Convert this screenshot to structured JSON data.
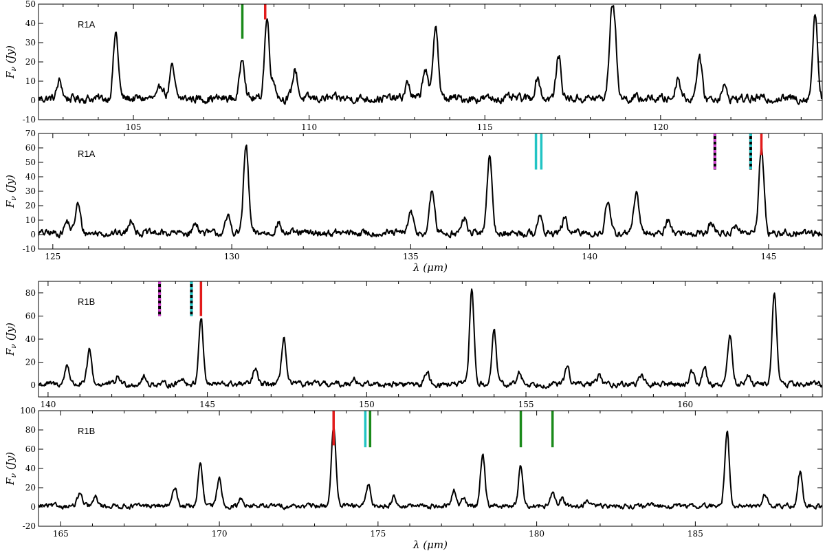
{
  "chart_data": [
    {
      "type": "line",
      "panel_label": "R1A",
      "xlim": [
        102.3,
        124.6
      ],
      "ylim": [
        -10,
        50
      ],
      "xticks": [
        105,
        110,
        115,
        120
      ],
      "yticks": [
        -10,
        0,
        10,
        20,
        30,
        40,
        50
      ],
      "xlabel": "",
      "ylabel": "F_ν (Jy)",
      "show_xlabel": false,
      "baseline": 1,
      "noise": 1.8,
      "peaks": [
        [
          102.9,
          9
        ],
        [
          104.5,
          34
        ],
        [
          105.8,
          7
        ],
        [
          106.1,
          16
        ],
        [
          108.1,
          22
        ],
        [
          108.8,
          41
        ],
        [
          109.0,
          8
        ],
        [
          109.6,
          15
        ],
        [
          112.8,
          8
        ],
        [
          113.3,
          16
        ],
        [
          113.6,
          39
        ],
        [
          116.5,
          11
        ],
        [
          117.1,
          22
        ],
        [
          118.6,
          37
        ],
        [
          118.7,
          26
        ],
        [
          120.5,
          11
        ],
        [
          121.1,
          22
        ],
        [
          121.8,
          6
        ],
        [
          124.4,
          44
        ]
      ],
      "markers": [
        {
          "x": 108.1,
          "y0": 32,
          "y1": 50,
          "color": "#1a8a1a"
        },
        {
          "x": 108.75,
          "y0": 42,
          "y1": 50,
          "color": "#e21b1b"
        }
      ]
    },
    {
      "type": "line",
      "panel_label": "R1A",
      "xlim": [
        124.6,
        146.5
      ],
      "ylim": [
        -10,
        70
      ],
      "xticks": [
        125,
        130,
        135,
        140,
        145
      ],
      "yticks": [
        -10,
        0,
        10,
        20,
        30,
        40,
        50,
        60,
        70
      ],
      "xlabel": "λ (μm)",
      "ylabel": "F_ν (Jy)",
      "show_xlabel": true,
      "baseline": 1,
      "noise": 2.0,
      "peaks": [
        [
          125.4,
          8
        ],
        [
          125.7,
          20
        ],
        [
          127.2,
          10
        ],
        [
          129.0,
          7
        ],
        [
          129.9,
          11
        ],
        [
          130.4,
          60
        ],
        [
          131.3,
          7
        ],
        [
          135.0,
          14
        ],
        [
          135.6,
          29
        ],
        [
          136.5,
          10
        ],
        [
          137.2,
          53
        ],
        [
          138.6,
          11
        ],
        [
          139.3,
          10
        ],
        [
          140.5,
          21
        ],
        [
          141.3,
          28
        ],
        [
          142.2,
          9
        ],
        [
          143.4,
          7
        ],
        [
          144.1,
          6
        ],
        [
          144.8,
          59
        ]
      ],
      "markers": [
        {
          "x": 138.5,
          "y0": 45,
          "y1": 70,
          "color": "#22c4c4"
        },
        {
          "x": 138.65,
          "y0": 45,
          "y1": 70,
          "color": "#22c4c4"
        },
        {
          "x": 143.5,
          "y0": 45,
          "y1": 70,
          "color": "#d040d0",
          "dashed": true
        },
        {
          "x": 144.5,
          "y0": 45,
          "y1": 70,
          "color": "#22c4c4",
          "dashed": true
        },
        {
          "x": 144.8,
          "y0": 55,
          "y1": 70,
          "color": "#e21b1b"
        }
      ]
    },
    {
      "type": "line",
      "panel_label": "R1B",
      "xlim": [
        139.7,
        164.3
      ],
      "ylim": [
        -10,
        90
      ],
      "xticks": [
        140,
        145,
        150,
        155,
        160
      ],
      "yticks": [
        0,
        20,
        40,
        60,
        80
      ],
      "xlabel": "",
      "ylabel": "F_ν (Jy)",
      "show_xlabel": false,
      "baseline": 1,
      "noise": 2.0,
      "peaks": [
        [
          140.6,
          17
        ],
        [
          141.3,
          29
        ],
        [
          142.2,
          6
        ],
        [
          143.0,
          6
        ],
        [
          144.2,
          6
        ],
        [
          144.8,
          58
        ],
        [
          146.5,
          13
        ],
        [
          147.4,
          41
        ],
        [
          149.6,
          6
        ],
        [
          151.9,
          11
        ],
        [
          153.3,
          82
        ],
        [
          154.0,
          45
        ],
        [
          154.8,
          10
        ],
        [
          156.3,
          16
        ],
        [
          157.3,
          8
        ],
        [
          158.6,
          8
        ],
        [
          160.2,
          12
        ],
        [
          160.6,
          15
        ],
        [
          161.4,
          44
        ],
        [
          162.0,
          8
        ],
        [
          162.8,
          80
        ]
      ],
      "markers": [
        {
          "x": 143.5,
          "y0": 60,
          "y1": 90,
          "color": "#d040d0",
          "dashed": true
        },
        {
          "x": 144.5,
          "y0": 60,
          "y1": 90,
          "color": "#22c4c4",
          "dashed": true
        },
        {
          "x": 144.8,
          "y0": 60,
          "y1": 90,
          "color": "#e21b1b"
        }
      ]
    },
    {
      "type": "line",
      "panel_label": "R1B",
      "xlim": [
        164.3,
        189.0
      ],
      "ylim": [
        -20,
        100
      ],
      "xticks": [
        165,
        170,
        175,
        180,
        185
      ],
      "yticks": [
        -20,
        0,
        20,
        40,
        60,
        80,
        100
      ],
      "xlabel": "λ (μm)",
      "ylabel": "F_ν (Jy)",
      "show_xlabel": true,
      "baseline": 1,
      "noise": 2.0,
      "peaks": [
        [
          165.6,
          13
        ],
        [
          166.1,
          9
        ],
        [
          168.6,
          20
        ],
        [
          169.4,
          43
        ],
        [
          170.0,
          29
        ],
        [
          170.7,
          8
        ],
        [
          173.6,
          84
        ],
        [
          174.7,
          22
        ],
        [
          175.5,
          10
        ],
        [
          177.4,
          16
        ],
        [
          177.7,
          8
        ],
        [
          178.3,
          55
        ],
        [
          179.5,
          42
        ],
        [
          180.5,
          12
        ],
        [
          180.8,
          8
        ],
        [
          181.6,
          6
        ],
        [
          186.0,
          78
        ],
        [
          187.2,
          12
        ],
        [
          188.3,
          35
        ]
      ],
      "markers": [
        {
          "x": 173.6,
          "y0": 64,
          "y1": 100,
          "color": "#e21b1b"
        },
        {
          "x": 174.6,
          "y0": 62,
          "y1": 100,
          "color": "#22c4c4"
        },
        {
          "x": 174.75,
          "y0": 62,
          "y1": 100,
          "color": "#1a8a1a"
        },
        {
          "x": 179.5,
          "y0": 62,
          "y1": 100,
          "color": "#1a8a1a"
        },
        {
          "x": 180.5,
          "y0": 62,
          "y1": 100,
          "color": "#1a8a1a"
        }
      ]
    }
  ]
}
